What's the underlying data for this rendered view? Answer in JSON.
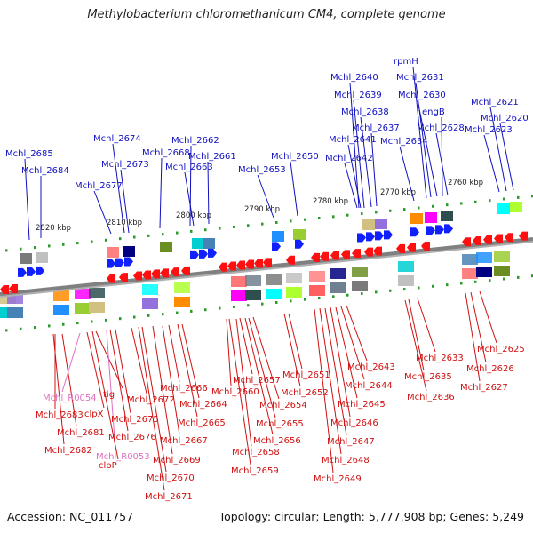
{
  "title": "Methylobacterium chloromethanicum CM4, complete genome",
  "accession": "Accession: NC_011757",
  "summary": "Topology: circular; Length: 5,777,908 bp; Genes: 5,249",
  "colors": {
    "upper_label": "#1010c0",
    "lower_label": "#d01010",
    "rna_label": "#e070c0",
    "forward_arrow": "#1020ff",
    "reverse_arrow": "#ff1010",
    "backbone": "#808080",
    "tick": "#2a9a2a"
  },
  "scale_labels": [
    "2820 kbp",
    "2810 kbp",
    "2800 kbp",
    "2790 kbp",
    "2780 kbp",
    "2770 kbp",
    "2760 kbp"
  ],
  "upper_genes": [
    "Mchl_2685",
    "Mchl_2684",
    "Mchl_2677",
    "Mchl_2674",
    "Mchl_2673",
    "Mchl_2668",
    "Mchl_2662",
    "Mchl_2661",
    "Mchl_2663",
    "Mchl_2653",
    "Mchl_2650",
    "Mchl_2640",
    "Mchl_2639",
    "Mchl_2638",
    "Mchl_2637",
    "Mchl_2641",
    "Mchl_2642",
    "Mchl_2634",
    "rpmH",
    "Mchl_2631",
    "Mchl_2630",
    "engB",
    "Mchl_2628",
    "Mchl_2621",
    "Mchl_2620",
    "Mchl_2623"
  ],
  "lower_genes": [
    "Mchl_R0054",
    "tig",
    "Mchl_2683",
    "clpX",
    "Mchl_2681",
    "Mchl_2682",
    "Mchl_R0053",
    "clpP",
    "Mchl_2672",
    "Mchl_2675",
    "Mchl_2676",
    "Mchl_2666",
    "Mchl_2664",
    "Mchl_2665",
    "Mchl_2667",
    "Mchl_2669",
    "Mchl_2670",
    "Mchl_2671",
    "Mchl_2660",
    "Mchl_2657",
    "Mchl_2654",
    "Mchl_2655",
    "Mchl_2656",
    "Mchl_2658",
    "Mchl_2659",
    "Mchl_2651",
    "Mchl_2652",
    "Mchl_2643",
    "Mchl_2644",
    "Mchl_2645",
    "Mchl_2646",
    "Mchl_2647",
    "Mchl_2648",
    "Mchl_2649",
    "Mchl_2633",
    "Mchl_2635",
    "Mchl_2636",
    "Mchl_2625",
    "Mchl_2626",
    "Mchl_2627"
  ]
}
